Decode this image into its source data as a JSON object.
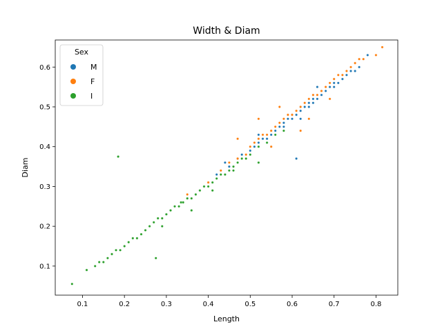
{
  "chart_data": {
    "type": "scatter",
    "title": "Width & Diam",
    "xlabel": "Length",
    "ylabel": "Diam",
    "xlim": [
      0.035,
      0.852
    ],
    "ylim": [
      0.027,
      0.668
    ],
    "xticks": [
      0.1,
      0.2,
      0.3,
      0.4,
      0.5,
      0.6,
      0.7,
      0.8
    ],
    "yticks": [
      0.1,
      0.2,
      0.3,
      0.4,
      0.5,
      0.6
    ],
    "grid": false,
    "legend": {
      "title": "Sex",
      "placement": "top-left",
      "entries": [
        {
          "name": "M",
          "color": "#1f77b4"
        },
        {
          "name": "F",
          "color": "#ff7f0e"
        },
        {
          "name": "I",
          "color": "#2ca02c"
        }
      ]
    },
    "series": [
      {
        "name": "M",
        "color": "#1f77b4",
        "x": [
          0.3,
          0.35,
          0.4,
          0.42,
          0.45,
          0.47,
          0.48,
          0.5,
          0.51,
          0.52,
          0.53,
          0.54,
          0.55,
          0.55,
          0.56,
          0.57,
          0.58,
          0.58,
          0.59,
          0.6,
          0.6,
          0.61,
          0.62,
          0.62,
          0.63,
          0.64,
          0.64,
          0.65,
          0.65,
          0.66,
          0.67,
          0.67,
          0.68,
          0.69,
          0.7,
          0.7,
          0.71,
          0.72,
          0.73,
          0.74,
          0.75,
          0.76,
          0.78,
          0.61,
          0.55,
          0.66,
          0.44,
          0.52,
          0.62
        ],
        "y": [
          0.23,
          0.27,
          0.31,
          0.33,
          0.35,
          0.37,
          0.38,
          0.39,
          0.4,
          0.41,
          0.42,
          0.42,
          0.43,
          0.44,
          0.44,
          0.45,
          0.46,
          0.45,
          0.47,
          0.47,
          0.48,
          0.48,
          0.49,
          0.5,
          0.5,
          0.51,
          0.5,
          0.52,
          0.51,
          0.52,
          0.53,
          0.54,
          0.54,
          0.55,
          0.56,
          0.55,
          0.56,
          0.57,
          0.58,
          0.59,
          0.59,
          0.6,
          0.63,
          0.37,
          0.4,
          0.55,
          0.36,
          0.43,
          0.47
        ]
      },
      {
        "name": "F",
        "color": "#ff7f0e",
        "x": [
          0.35,
          0.4,
          0.43,
          0.45,
          0.47,
          0.49,
          0.5,
          0.51,
          0.52,
          0.53,
          0.54,
          0.55,
          0.56,
          0.57,
          0.58,
          0.59,
          0.6,
          0.61,
          0.62,
          0.63,
          0.64,
          0.65,
          0.66,
          0.67,
          0.68,
          0.69,
          0.7,
          0.71,
          0.72,
          0.73,
          0.74,
          0.75,
          0.76,
          0.77,
          0.8,
          0.815,
          0.47,
          0.52,
          0.57,
          0.64,
          0.69,
          0.55,
          0.62
        ],
        "y": [
          0.28,
          0.31,
          0.34,
          0.36,
          0.37,
          0.38,
          0.4,
          0.41,
          0.42,
          0.43,
          0.43,
          0.44,
          0.45,
          0.46,
          0.47,
          0.48,
          0.48,
          0.49,
          0.5,
          0.51,
          0.52,
          0.53,
          0.53,
          0.54,
          0.55,
          0.56,
          0.57,
          0.58,
          0.58,
          0.59,
          0.6,
          0.61,
          0.62,
          0.62,
          0.63,
          0.65,
          0.42,
          0.47,
          0.5,
          0.47,
          0.52,
          0.4,
          0.44
        ]
      },
      {
        "name": "I",
        "color": "#2ca02c",
        "x": [
          0.075,
          0.11,
          0.13,
          0.14,
          0.15,
          0.16,
          0.17,
          0.18,
          0.19,
          0.2,
          0.21,
          0.22,
          0.23,
          0.24,
          0.25,
          0.26,
          0.27,
          0.28,
          0.29,
          0.3,
          0.31,
          0.32,
          0.33,
          0.34,
          0.35,
          0.36,
          0.37,
          0.38,
          0.39,
          0.4,
          0.41,
          0.42,
          0.43,
          0.44,
          0.45,
          0.46,
          0.47,
          0.48,
          0.49,
          0.5,
          0.52,
          0.54,
          0.56,
          0.58,
          0.185,
          0.275,
          0.335,
          0.36,
          0.29,
          0.41,
          0.46,
          0.52
        ],
        "y": [
          0.055,
          0.09,
          0.1,
          0.11,
          0.11,
          0.12,
          0.13,
          0.14,
          0.14,
          0.15,
          0.16,
          0.17,
          0.17,
          0.18,
          0.19,
          0.2,
          0.21,
          0.22,
          0.22,
          0.23,
          0.24,
          0.25,
          0.25,
          0.26,
          0.27,
          0.27,
          0.28,
          0.29,
          0.3,
          0.3,
          0.31,
          0.32,
          0.33,
          0.33,
          0.34,
          0.35,
          0.36,
          0.37,
          0.37,
          0.38,
          0.4,
          0.41,
          0.43,
          0.44,
          0.375,
          0.12,
          0.26,
          0.24,
          0.2,
          0.29,
          0.34,
          0.36
        ]
      }
    ]
  }
}
